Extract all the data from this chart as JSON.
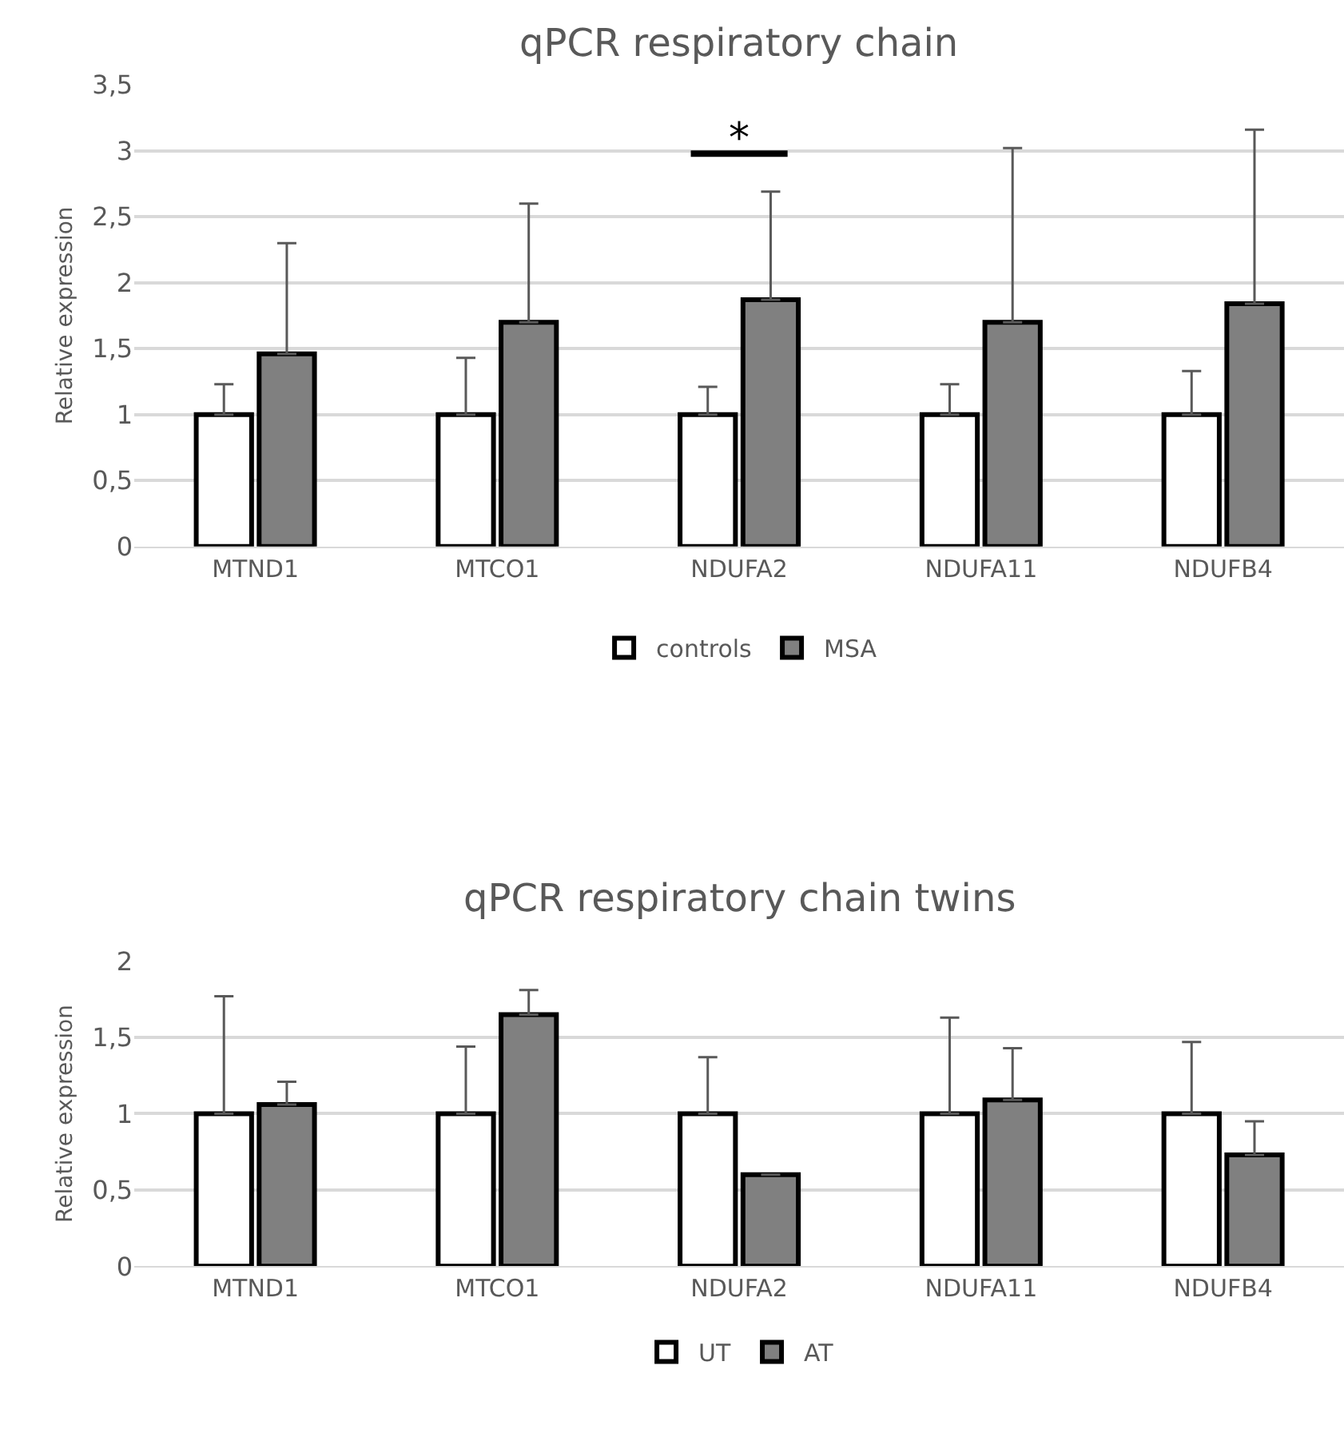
{
  "chart_data": [
    {
      "type": "bar",
      "title": "qPCR respiratory chain",
      "ylabel": "Relative expression",
      "categories": [
        "MTND1",
        "MTCO1",
        "NDUFA2",
        "NDUFA11",
        "NDUFB4"
      ],
      "series": [
        {
          "name": "controls",
          "color": "#ffffff",
          "values": [
            1,
            1,
            1,
            1,
            1
          ],
          "errors": [
            [
              1,
              1.23
            ],
            [
              1,
              1.43
            ],
            [
              1,
              1.21
            ],
            [
              1,
              1.23
            ],
            [
              1,
              1.33
            ]
          ]
        },
        {
          "name": "MSA",
          "color": "#808080",
          "values": [
            1.46,
            1.7,
            1.87,
            1.7,
            1.84
          ],
          "errors": [
            [
              1.46,
              2.3
            ],
            [
              1.7,
              2.6
            ],
            [
              1.87,
              2.69
            ],
            [
              1.7,
              3.02
            ],
            [
              1.84,
              3.16
            ]
          ]
        }
      ],
      "ylim": [
        0,
        3.5
      ],
      "yticks": [
        0,
        {
          "value": 0.5,
          "label": "0,5"
        },
        1,
        {
          "value": 1.5,
          "label": "1,5"
        },
        2,
        {
          "value": 2.5,
          "label": "2,5"
        },
        3,
        {
          "value": 3.5,
          "label": "3,5"
        }
      ],
      "annotations": [
        "*"
      ],
      "grid": "y",
      "legend": "bottom"
    },
    {
      "type": "bar",
      "title": "qPCR respiratory chain twins",
      "ylabel": "Relative expression",
      "categories": [
        "MTND1",
        "MTCO1",
        "NDUFA2",
        "NDUFA11",
        "NDUFB4"
      ],
      "series": [
        {
          "name": "UT",
          "color": "#ffffff",
          "values": [
            1,
            1,
            1,
            1,
            1
          ],
          "errors": [
            [
              1,
              1.77
            ],
            [
              1,
              1.44
            ],
            [
              1,
              1.37
            ],
            [
              1,
              1.63
            ],
            [
              1,
              1.47
            ]
          ]
        },
        {
          "name": "AT",
          "color": "#808080",
          "values": [
            1.06,
            1.65,
            0.6,
            1.09,
            0.73
          ],
          "errors": [
            [
              1.06,
              1.21
            ],
            [
              1.65,
              1.81
            ],
            [
              0.6,
              0.6
            ],
            [
              1.09,
              1.43
            ],
            [
              0.73,
              0.95
            ]
          ]
        }
      ],
      "ylim": [
        0,
        2
      ],
      "yticks": [
        0,
        {
          "value": 0.5,
          "label": "0,5"
        },
        1,
        {
          "value": 1.5,
          "label": "1,5"
        },
        2
      ],
      "grid": "y",
      "legend": "bottom"
    }
  ]
}
